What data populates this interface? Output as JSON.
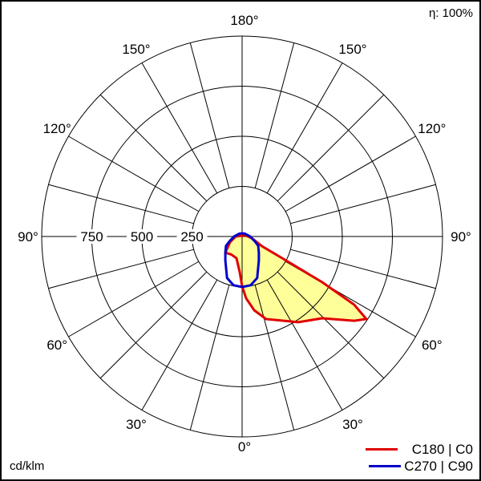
{
  "chart_data": {
    "type": "polar",
    "efficiency_label": "η: 100%",
    "unit_label": "cd/klm",
    "radial_ticks": [
      250,
      500,
      750
    ],
    "rmax": 1000,
    "angle_labels": [
      "0°",
      "30°",
      "60°",
      "90°",
      "120°",
      "150°",
      "180°"
    ],
    "series": [
      {
        "name": "C180 | C0",
        "color": "#e00000",
        "fill": "#ffff99",
        "gamma": [
          -180,
          -90,
          -65,
          -46,
          -30,
          -14.5,
          -4,
          0,
          3.7,
          9.3,
          16.2,
          33.2,
          44.4,
          53.1,
          56.4,
          58.7,
          60.3,
          61.6,
          64,
          80,
          120,
          180
        ],
        "values": [
          4,
          32,
          66,
          116,
          105,
          112,
          176,
          248,
          309,
          373,
          429,
          511,
          571,
          700,
          744,
          655,
          460,
          227,
          111,
          49,
          15,
          4
        ]
      },
      {
        "name": "C270 | C90",
        "color": "#0000cc",
        "gamma": [
          -180,
          -135,
          -90,
          -69,
          -60,
          -46,
          -35,
          -20,
          -10,
          0,
          10,
          20,
          35,
          46,
          60,
          69,
          90,
          135,
          180
        ],
        "values": [
          16,
          20,
          40,
          68,
          93,
          116,
          146,
          220,
          247,
          252,
          247,
          220,
          146,
          116,
          93,
          68,
          40,
          20,
          16
        ]
      }
    ]
  }
}
